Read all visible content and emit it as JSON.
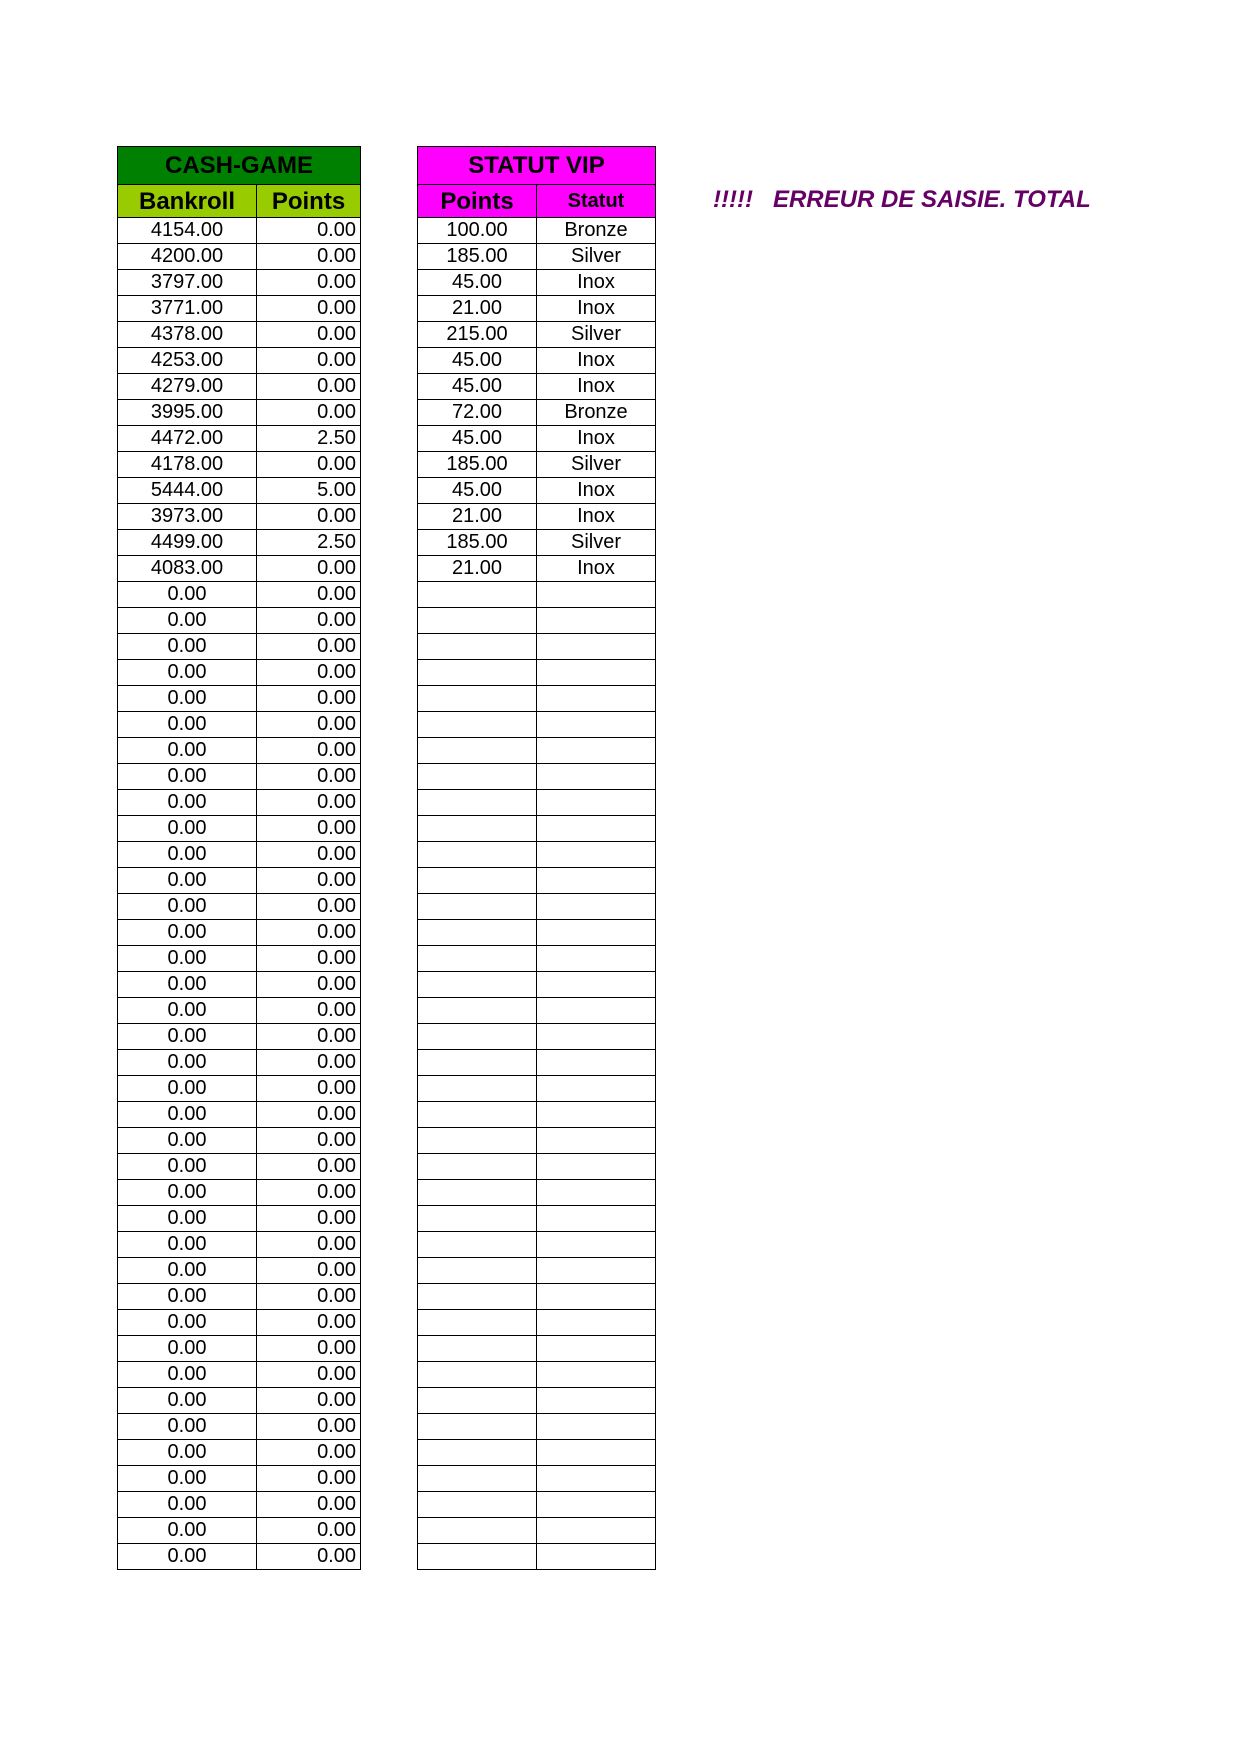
{
  "colors": {
    "cash_title_bg": "#008000",
    "cash_sub_bg": "#99cc00",
    "vip_bg": "#ff00ff",
    "header_text": "#ffff00",
    "error_text": "#660066"
  },
  "cash_game": {
    "title": "CASH-GAME",
    "columns": [
      "Bankroll",
      "Points"
    ],
    "rows": [
      [
        "4154.00",
        "0.00"
      ],
      [
        "4200.00",
        "0.00"
      ],
      [
        "3797.00",
        "0.00"
      ],
      [
        "3771.00",
        "0.00"
      ],
      [
        "4378.00",
        "0.00"
      ],
      [
        "4253.00",
        "0.00"
      ],
      [
        "4279.00",
        "0.00"
      ],
      [
        "3995.00",
        "0.00"
      ],
      [
        "4472.00",
        "2.50"
      ],
      [
        "4178.00",
        "0.00"
      ],
      [
        "5444.00",
        "5.00"
      ],
      [
        "3973.00",
        "0.00"
      ],
      [
        "4499.00",
        "2.50"
      ],
      [
        "4083.00",
        "0.00"
      ],
      [
        "0.00",
        "0.00"
      ],
      [
        "0.00",
        "0.00"
      ],
      [
        "0.00",
        "0.00"
      ],
      [
        "0.00",
        "0.00"
      ],
      [
        "0.00",
        "0.00"
      ],
      [
        "0.00",
        "0.00"
      ],
      [
        "0.00",
        "0.00"
      ],
      [
        "0.00",
        "0.00"
      ],
      [
        "0.00",
        "0.00"
      ],
      [
        "0.00",
        "0.00"
      ],
      [
        "0.00",
        "0.00"
      ],
      [
        "0.00",
        "0.00"
      ],
      [
        "0.00",
        "0.00"
      ],
      [
        "0.00",
        "0.00"
      ],
      [
        "0.00",
        "0.00"
      ],
      [
        "0.00",
        "0.00"
      ],
      [
        "0.00",
        "0.00"
      ],
      [
        "0.00",
        "0.00"
      ],
      [
        "0.00",
        "0.00"
      ],
      [
        "0.00",
        "0.00"
      ],
      [
        "0.00",
        "0.00"
      ],
      [
        "0.00",
        "0.00"
      ],
      [
        "0.00",
        "0.00"
      ],
      [
        "0.00",
        "0.00"
      ],
      [
        "0.00",
        "0.00"
      ],
      [
        "0.00",
        "0.00"
      ],
      [
        "0.00",
        "0.00"
      ],
      [
        "0.00",
        "0.00"
      ],
      [
        "0.00",
        "0.00"
      ],
      [
        "0.00",
        "0.00"
      ],
      [
        "0.00",
        "0.00"
      ],
      [
        "0.00",
        "0.00"
      ],
      [
        "0.00",
        "0.00"
      ],
      [
        "0.00",
        "0.00"
      ],
      [
        "0.00",
        "0.00"
      ],
      [
        "0.00",
        "0.00"
      ],
      [
        "0.00",
        "0.00"
      ],
      [
        "0.00",
        "0.00"
      ]
    ]
  },
  "statut_vip": {
    "title": "STATUT VIP",
    "columns": [
      "Points",
      "Statut"
    ],
    "rows": [
      [
        "100.00",
        "Bronze"
      ],
      [
        "185.00",
        "Silver"
      ],
      [
        "45.00",
        "Inox"
      ],
      [
        "21.00",
        "Inox"
      ],
      [
        "215.00",
        "Silver"
      ],
      [
        "45.00",
        "Inox"
      ],
      [
        "45.00",
        "Inox"
      ],
      [
        "72.00",
        "Bronze"
      ],
      [
        "45.00",
        "Inox"
      ],
      [
        "185.00",
        "Silver"
      ],
      [
        "45.00",
        "Inox"
      ],
      [
        "21.00",
        "Inox"
      ],
      [
        "185.00",
        "Silver"
      ],
      [
        "21.00",
        "Inox"
      ]
    ]
  },
  "error_message": "!!!!!   ERREUR DE SAISIE. TOTAL"
}
